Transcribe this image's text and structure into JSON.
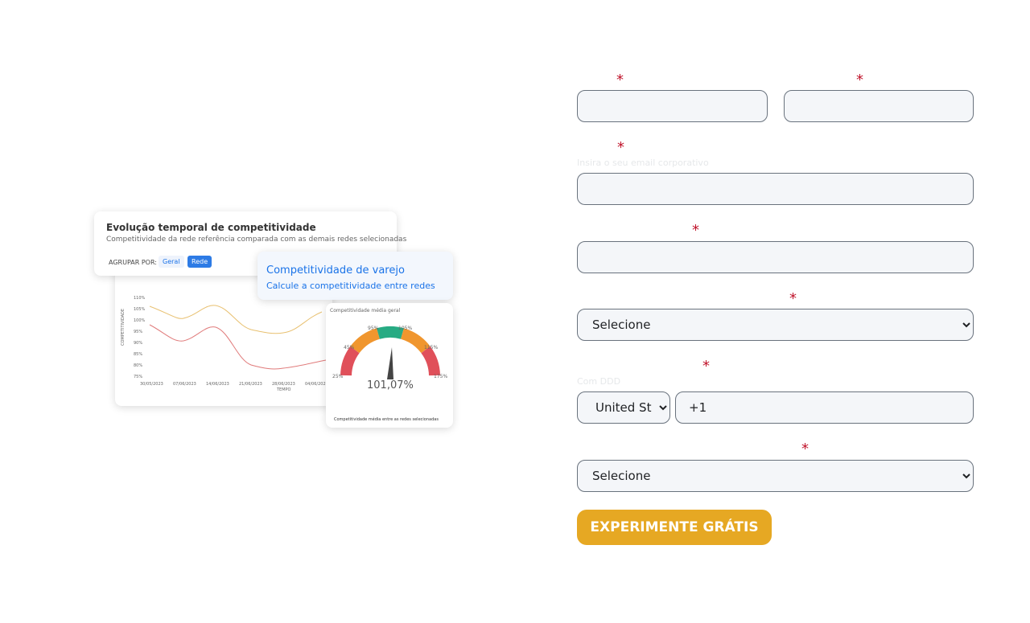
{
  "illustration": {
    "card_title": "Evolução temporal de competitividade",
    "card_subtitle": "Competitividade da rede referência comparada com as demais redes selecionadas",
    "group_label": "AGRUPAR POR:",
    "group_options": [
      "Geral",
      "Rede"
    ],
    "promo_title": "Competitividade de varejo",
    "promo_subtitle": "Calcule a competitividade entre redes",
    "y_title": "COMPETITIVIDADE",
    "y_ticks": [
      "110%",
      "105%",
      "100%",
      "95%",
      "90%",
      "85%",
      "80%",
      "75%"
    ],
    "x_title": "TEMPO",
    "x_ticks": [
      "30/05/2023",
      "07/06/2023",
      "14/06/2023",
      "21/06/2023",
      "28/06/2023",
      "04/06/2023"
    ],
    "gauge_title": "Competitividade média geral",
    "gauge_ticks": [
      "25%",
      "45%",
      "95%",
      "105%",
      "115%",
      "175%"
    ],
    "gauge_value": "101,07%",
    "gauge_note": "Competitividade média entre as redes selecionadas"
  },
  "form": {
    "fields": [
      {
        "required_mark": "*"
      },
      {
        "required_mark": "*"
      },
      {
        "required_mark": "*",
        "hint": "Insira o seu email corporativo"
      },
      {
        "required_mark": "*"
      },
      {
        "required_mark": "*",
        "placeholder": "Selecione"
      },
      {
        "required_mark": "*",
        "hint": "Com DDD",
        "country": "United St",
        "prefix": "+1"
      },
      {
        "required_mark": "*",
        "placeholder": "Selecione"
      }
    ],
    "button": "EXPERIMENTE GRÁTIS"
  }
}
